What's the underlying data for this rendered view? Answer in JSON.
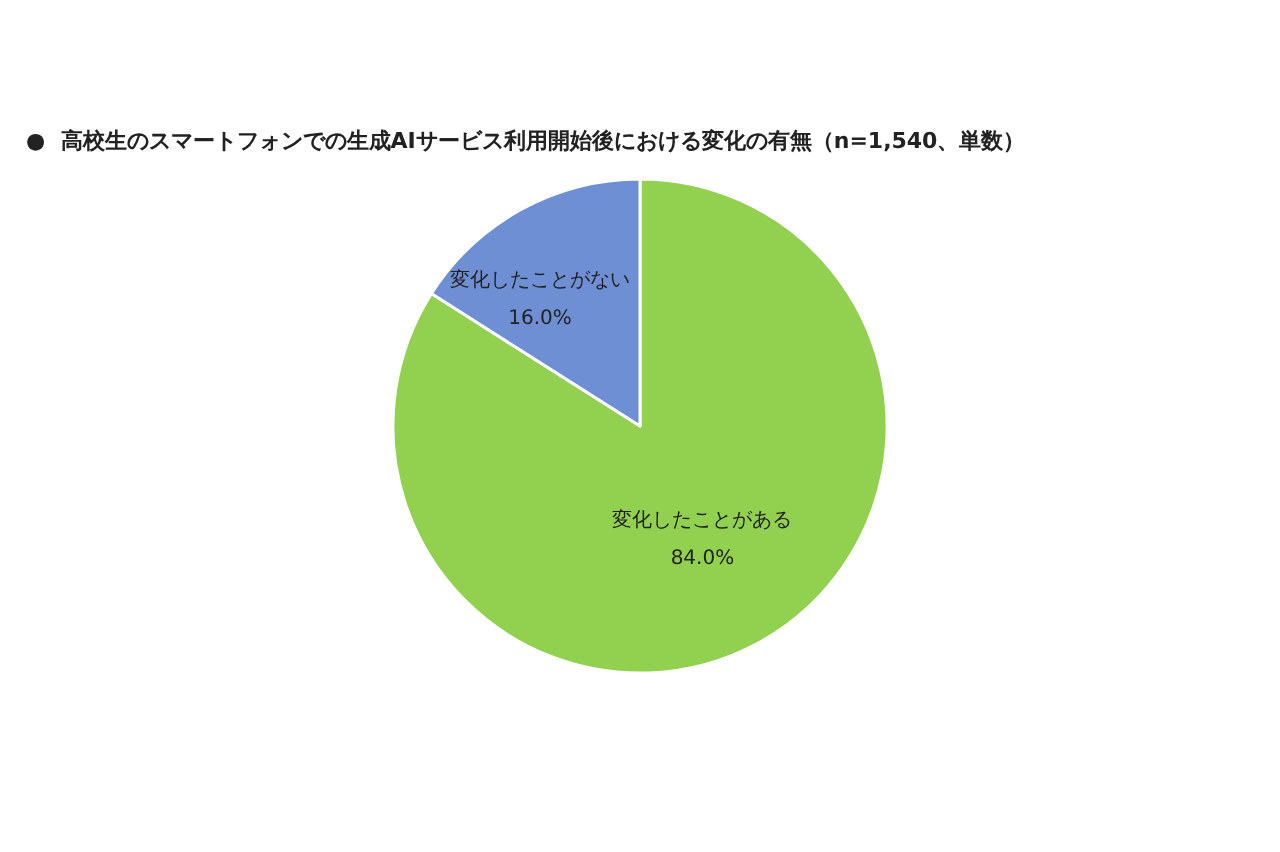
{
  "chart_data": {
    "type": "pie",
    "title": "●  高校生のスマートフォンでの生成AIサービス利用開始後における変化の有無（n=1,540、単数）",
    "categories": [
      "変化したことがある",
      "変化したことがない"
    ],
    "values": [
      84,
      16
    ],
    "colors": [
      "#92d050",
      "#6f8fd4"
    ],
    "value_labels": [
      "84.0%",
      "16.0%"
    ],
    "legend": false
  }
}
